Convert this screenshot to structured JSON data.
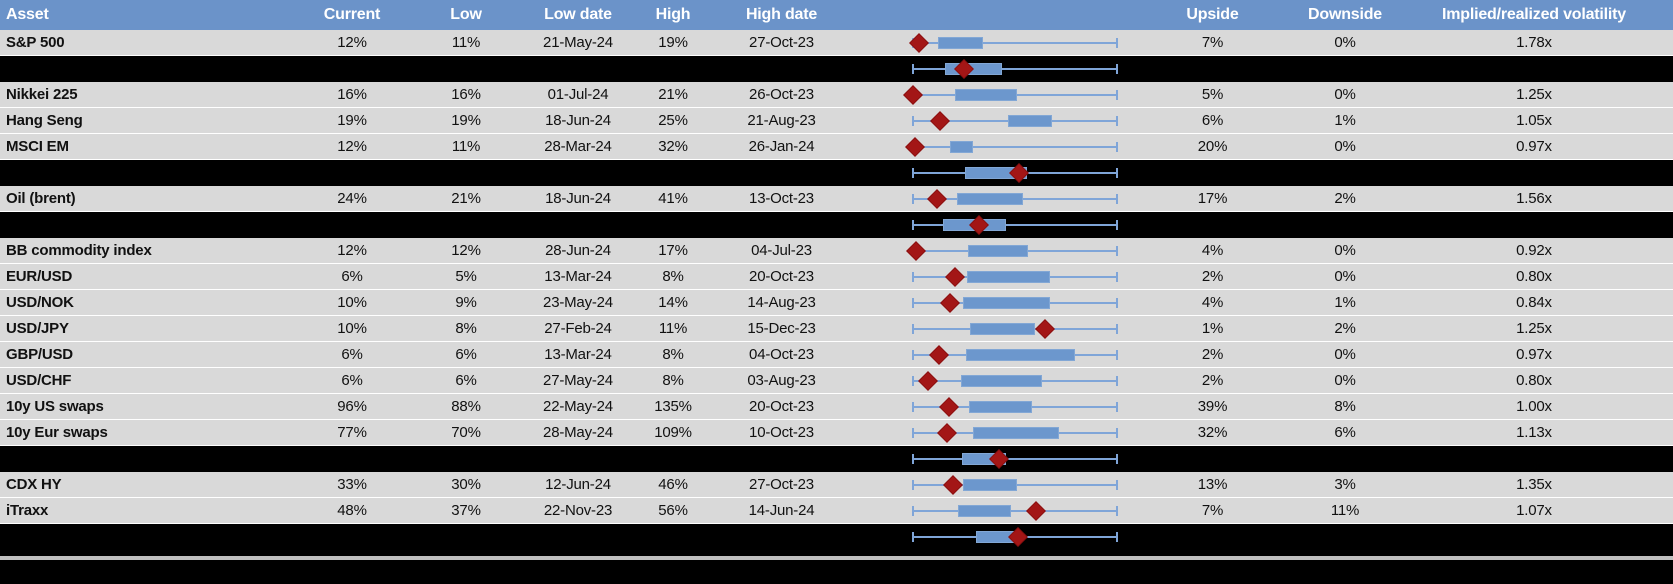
{
  "header": {
    "columns": [
      "Asset",
      "Current",
      "Low",
      "Low date",
      "High",
      "High date",
      "",
      "Upside",
      "Downside",
      "Implied/realized volatility"
    ]
  },
  "colors": {
    "header_bg": "#6b93c9",
    "header_text": "#ffffff",
    "row_bg": "#d9d9d9",
    "gridline": "#ffffff",
    "separator_bg": "#000000",
    "text": "#111111",
    "whisker": "#7fa5d8",
    "box_fill": "#6c97cd",
    "box_border": "#82a7d5",
    "diamond": "#a31616",
    "diamond_border": "#8b0f0f",
    "bottom_divider": "#c0c0c0"
  },
  "chart_data": {
    "type": "table",
    "note_axis": "boxplot geometry given as percent of chart cell width; whisker low/high, box (interquartile) low/high, diamond = current level marker",
    "columns": [
      "Asset",
      "Current",
      "Low",
      "Low date",
      "High",
      "High date",
      "Upside",
      "Downside",
      "Implied/realized volatility"
    ],
    "rows": [
      {
        "kind": "data",
        "asset": "S&P 500",
        "current": "12%",
        "low": "11%",
        "low_date": "21-May-24",
        "high": "19%",
        "high_date": "27-Oct-23",
        "upside": "7%",
        "downside": "0%",
        "impl_real": "1.78x",
        "plot": {
          "wl": 24.0,
          "wh": 95.6,
          "bl": 32.6,
          "bh": 48.4,
          "d": 26.0
        }
      },
      {
        "kind": "aggregate",
        "plot": {
          "wl": 24.0,
          "wh": 95.6,
          "bl": 35.1,
          "bh": 55.1,
          "d": 41.8
        }
      },
      {
        "kind": "data",
        "asset": "Nikkei 225",
        "current": "16%",
        "low": "16%",
        "low_date": "01-Jul-24",
        "high": "21%",
        "high_date": "26-Oct-23",
        "upside": "5%",
        "downside": "0%",
        "impl_real": "1.25x",
        "plot": {
          "wl": 24.0,
          "wh": 95.6,
          "bl": 38.6,
          "bh": 60.4,
          "d": 23.9
        }
      },
      {
        "kind": "data",
        "asset": "Hang Seng",
        "current": "19%",
        "low": "19%",
        "low_date": "18-Jun-24",
        "high": "25%",
        "high_date": "21-Aug-23",
        "upside": "6%",
        "downside": "1%",
        "impl_real": "1.05x",
        "plot": {
          "wl": 24.0,
          "wh": 95.6,
          "bl": 57.2,
          "bh": 72.6,
          "d": 33.3
        }
      },
      {
        "kind": "data",
        "asset": "MSCI EM",
        "current": "12%",
        "low": "11%",
        "low_date": "28-Mar-24",
        "high": "32%",
        "high_date": "26-Jan-24",
        "upside": "20%",
        "downside": "0%",
        "impl_real": "0.97x",
        "plot": {
          "wl": 24.0,
          "wh": 95.6,
          "bl": 36.8,
          "bh": 44.9,
          "d": 24.6
        }
      },
      {
        "kind": "aggregate",
        "plot": {
          "wl": 24.0,
          "wh": 95.6,
          "bl": 42.1,
          "bh": 63.9,
          "d": 61.1
        }
      },
      {
        "kind": "data",
        "asset": "Oil (brent)",
        "current": "24%",
        "low": "21%",
        "low_date": "18-Jun-24",
        "high": "41%",
        "high_date": "13-Oct-23",
        "upside": "17%",
        "downside": "2%",
        "impl_real": "1.56x",
        "plot": {
          "wl": 24.0,
          "wh": 95.6,
          "bl": 39.3,
          "bh": 62.5,
          "d": 32.3
        }
      },
      {
        "kind": "aggregate",
        "plot": {
          "wl": 24.0,
          "wh": 95.6,
          "bl": 34.4,
          "bh": 56.5,
          "d": 47.0
        }
      },
      {
        "kind": "data",
        "asset": "BB commodity index",
        "current": "12%",
        "low": "12%",
        "low_date": "28-Jun-24",
        "high": "17%",
        "high_date": "04-Jul-23",
        "upside": "4%",
        "downside": "0%",
        "impl_real": "0.92x",
        "plot": {
          "wl": 24.0,
          "wh": 95.6,
          "bl": 43.2,
          "bh": 64.2,
          "d": 24.9
        }
      },
      {
        "kind": "data",
        "asset": "EUR/USD",
        "current": "6%",
        "low": "5%",
        "low_date": "13-Mar-24",
        "high": "8%",
        "high_date": "20-Oct-23",
        "upside": "2%",
        "downside": "0%",
        "impl_real": "0.80x",
        "plot": {
          "wl": 24.0,
          "wh": 95.6,
          "bl": 42.8,
          "bh": 71.9,
          "d": 38.6
        }
      },
      {
        "kind": "data",
        "asset": "USD/NOK",
        "current": "10%",
        "low": "9%",
        "low_date": "23-May-24",
        "high": "14%",
        "high_date": "14-Aug-23",
        "upside": "4%",
        "downside": "1%",
        "impl_real": "0.84x",
        "plot": {
          "wl": 24.0,
          "wh": 95.6,
          "bl": 41.4,
          "bh": 71.9,
          "d": 36.8
        }
      },
      {
        "kind": "data",
        "asset": "USD/JPY",
        "current": "10%",
        "low": "8%",
        "low_date": "27-Feb-24",
        "high": "11%",
        "high_date": "15-Dec-23",
        "upside": "1%",
        "downside": "2%",
        "impl_real": "1.25x",
        "plot": {
          "wl": 24.0,
          "wh": 95.6,
          "bl": 43.9,
          "bh": 66.7,
          "d": 70.2
        }
      },
      {
        "kind": "data",
        "asset": "GBP/USD",
        "current": "6%",
        "low": "6%",
        "low_date": "13-Mar-24",
        "high": "8%",
        "high_date": "04-Oct-23",
        "upside": "2%",
        "downside": "0%",
        "impl_real": "0.97x",
        "plot": {
          "wl": 24.0,
          "wh": 95.6,
          "bl": 42.5,
          "bh": 80.7,
          "d": 33.0
        }
      },
      {
        "kind": "data",
        "asset": "USD/CHF",
        "current": "6%",
        "low": "6%",
        "low_date": "27-May-24",
        "high": "8%",
        "high_date": "03-Aug-23",
        "upside": "2%",
        "downside": "0%",
        "impl_real": "0.80x",
        "plot": {
          "wl": 24.0,
          "wh": 95.6,
          "bl": 40.7,
          "bh": 69.1,
          "d": 29.1
        }
      },
      {
        "kind": "data",
        "asset": "10y US swaps",
        "current": "96%",
        "low": "88%",
        "low_date": "22-May-24",
        "high": "135%",
        "high_date": "20-Oct-23",
        "upside": "39%",
        "downside": "8%",
        "impl_real": "1.00x",
        "plot": {
          "wl": 24.0,
          "wh": 95.6,
          "bl": 43.5,
          "bh": 65.6,
          "d": 36.5
        }
      },
      {
        "kind": "data",
        "asset": "10y Eur swaps",
        "current": "77%",
        "low": "70%",
        "low_date": "28-May-24",
        "high": "109%",
        "high_date": "10-Oct-23",
        "upside": "32%",
        "downside": "6%",
        "impl_real": "1.13x",
        "plot": {
          "wl": 24.0,
          "wh": 95.6,
          "bl": 44.9,
          "bh": 75.1,
          "d": 35.8
        }
      },
      {
        "kind": "aggregate",
        "plot": {
          "wl": 24.0,
          "wh": 95.6,
          "bl": 41.1,
          "bh": 56.5,
          "d": 54.0
        }
      },
      {
        "kind": "data",
        "asset": "CDX HY",
        "current": "33%",
        "low": "30%",
        "low_date": "12-Jun-24",
        "high": "46%",
        "high_date": "27-Oct-23",
        "upside": "13%",
        "downside": "3%",
        "impl_real": "1.35x",
        "plot": {
          "wl": 24.0,
          "wh": 95.6,
          "bl": 41.4,
          "bh": 60.4,
          "d": 37.9
        }
      },
      {
        "kind": "data",
        "asset": "iTraxx",
        "current": "48%",
        "low": "37%",
        "low_date": "22-Nov-23",
        "high": "56%",
        "high_date": "14-Jun-24",
        "upside": "7%",
        "downside": "11%",
        "impl_real": "1.07x",
        "plot": {
          "wl": 24.0,
          "wh": 95.6,
          "bl": 39.6,
          "bh": 58.2,
          "d": 67.0
        }
      },
      {
        "kind": "aggregate",
        "plot": {
          "wl": 24.0,
          "wh": 95.6,
          "bl": 46.0,
          "bh": 62.1,
          "d": 60.7
        }
      }
    ]
  }
}
